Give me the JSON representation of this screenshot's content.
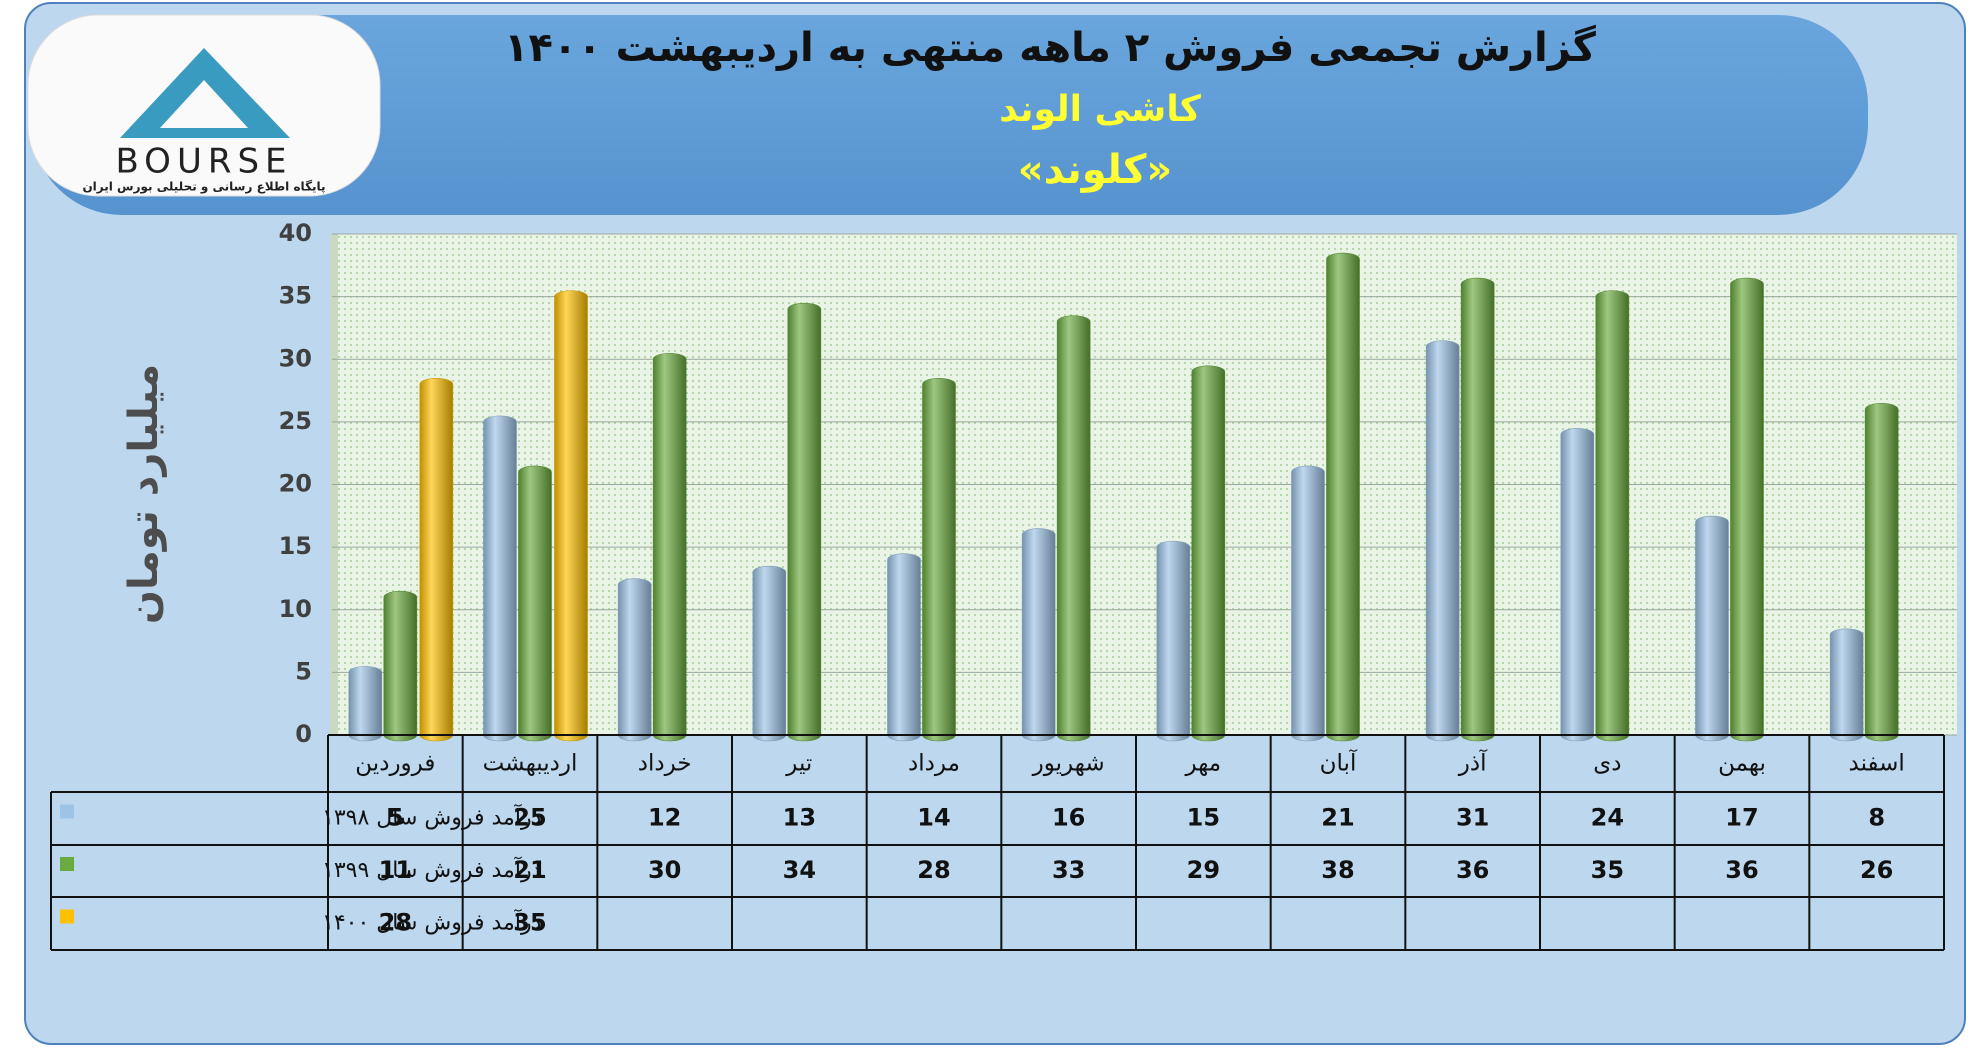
{
  "logo": {
    "text": "BOURSE",
    "tagline": "پایگاه اطلاع رسانی و تحلیلی بورس ایران"
  },
  "chart_data": {
    "type": "bar",
    "title": "گزارش تجمعی فروش ۲ ماهه منتهی به اردیبهشت ۱۴۰۰",
    "subtitle": "کاشی الوند",
    "subtitle2": "«کلوند»",
    "y_label": "میلیارد تومان",
    "categories": [
      "فروردین",
      "اردیبهشت",
      "خرداد",
      "تیر",
      "مرداد",
      "شهریور",
      "مهر",
      "آبان",
      "آذر",
      "دی",
      "بهمن",
      "اسفند"
    ],
    "series": [
      {
        "name": "درآمد فروش سال ۱۳۹۸",
        "color": "#9dc3e6",
        "values": [
          5,
          25,
          12,
          13,
          14,
          16,
          15,
          21,
          31,
          24,
          17,
          8
        ]
      },
      {
        "name": "درآمد فروش سال ۱۳۹۹",
        "color": "#6aab3f",
        "values": [
          11,
          21,
          30,
          34,
          28,
          33,
          29,
          38,
          36,
          35,
          36,
          26
        ]
      },
      {
        "name": "درآمد فروش سال ۱۴۰۰",
        "color": "#ffc000",
        "values": [
          28,
          35,
          null,
          null,
          null,
          null,
          null,
          null,
          null,
          null,
          null,
          null
        ]
      }
    ],
    "ylim": [
      0,
      40
    ],
    "yticks": [
      0,
      5,
      10,
      15,
      20,
      25,
      30,
      35,
      40
    ],
    "grid": true
  }
}
